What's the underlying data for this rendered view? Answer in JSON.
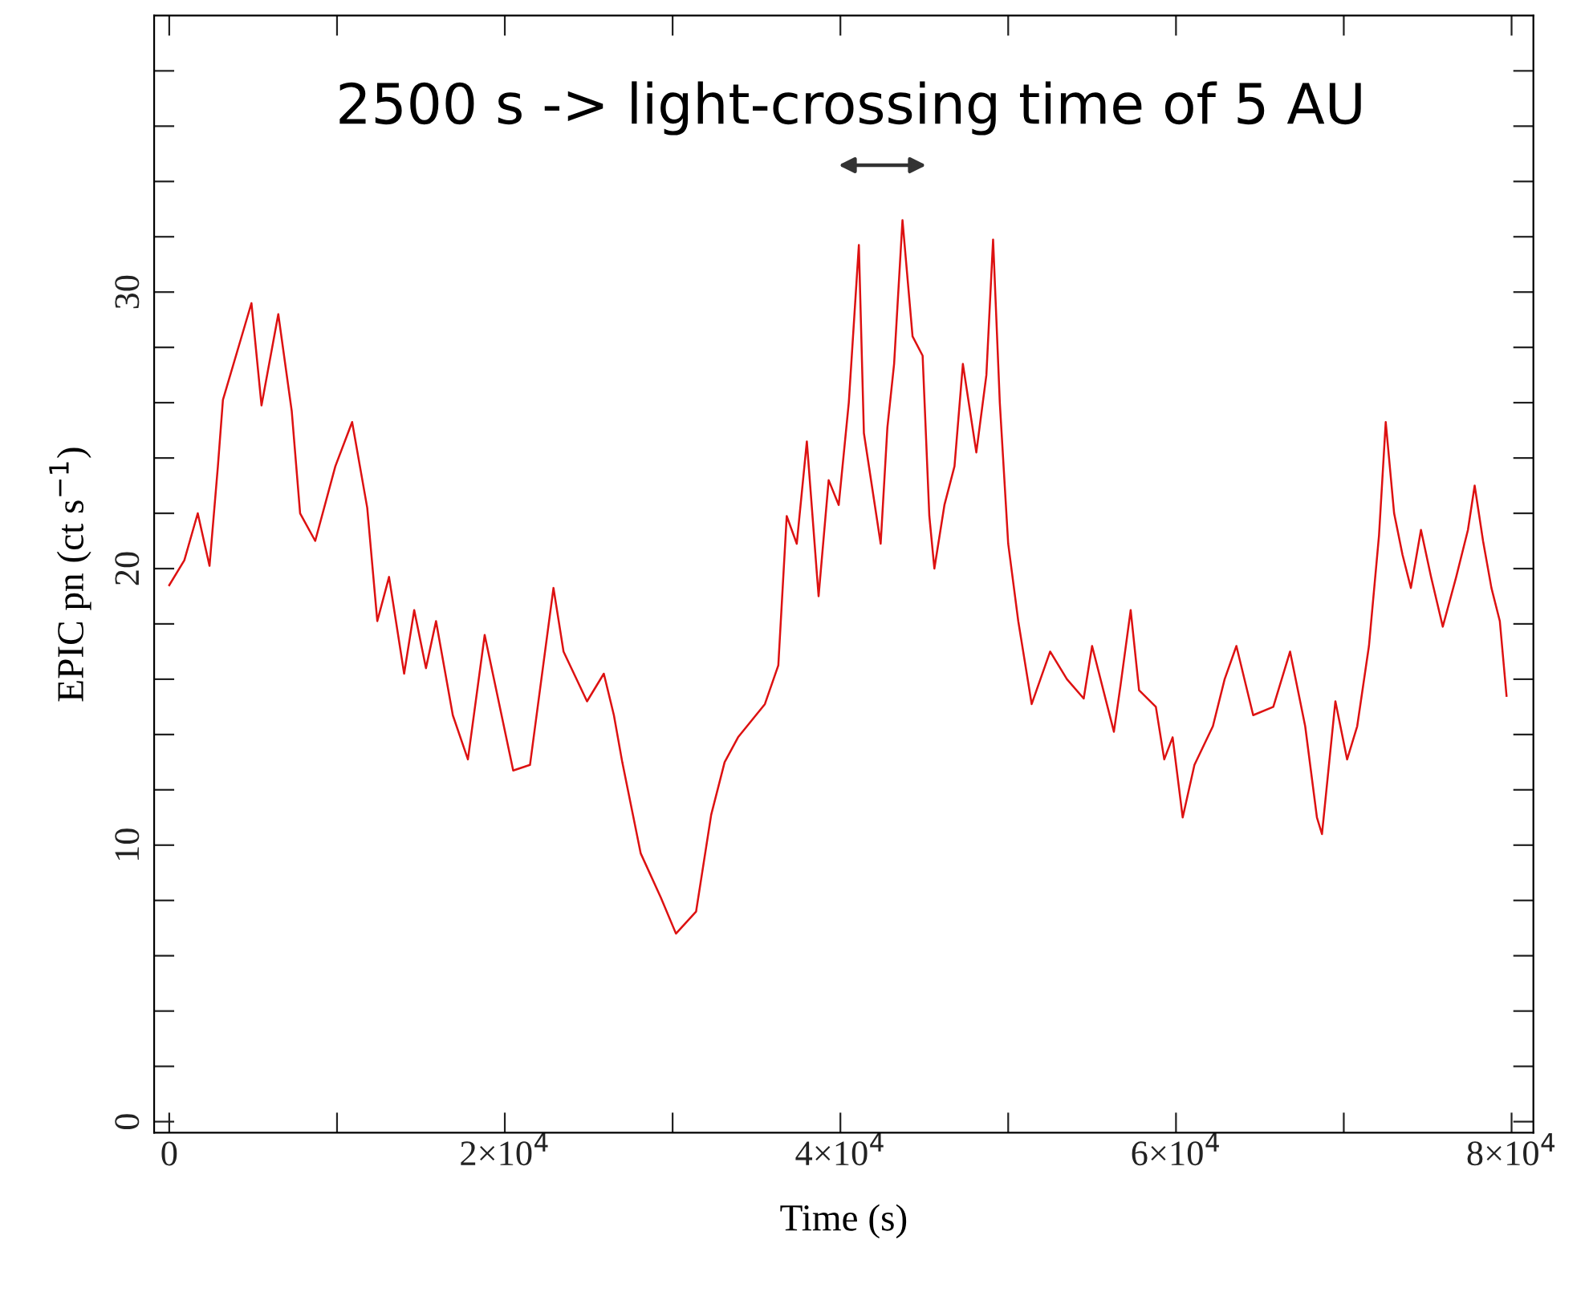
{
  "chart_data": {
    "type": "line",
    "xlabel": "Time (s)",
    "ylabel": "EPIC pn (ct s$^{−1}$)",
    "annotations": [
      "2500 s -> light-crossing time of 5 AU"
    ],
    "xlim": [
      -900,
      81300
    ],
    "ylim": [
      -0.4,
      40
    ],
    "xticks": [
      0,
      {
        "value": 10000,
        "label": null
      },
      {
        "value": 20000,
        "label": "2×10$^{4}$"
      },
      {
        "value": 30000,
        "label": null
      },
      {
        "value": 40000,
        "label": "4×10$^{4}$"
      },
      {
        "value": 50000,
        "label": null
      },
      {
        "value": 60000,
        "label": "6×10$^{4}$"
      },
      {
        "value": 70000,
        "label": null
      },
      {
        "value": 80000,
        "label": "8×10$^{4}$"
      }
    ],
    "yticks": [
      0,
      {
        "value": 2,
        "label": null
      },
      {
        "value": 4,
        "label": null
      },
      {
        "value": 6,
        "label": null
      },
      {
        "value": 8,
        "label": null
      },
      10,
      {
        "value": 12,
        "label": null
      },
      {
        "value": 14,
        "label": null
      },
      {
        "value": 16,
        "label": null
      },
      {
        "value": 18,
        "label": null
      },
      20,
      {
        "value": 22,
        "label": null
      },
      {
        "value": 24,
        "label": null
      },
      {
        "value": 26,
        "label": null
      },
      {
        "value": 28,
        "label": null
      },
      30,
      {
        "value": 32,
        "label": null
      },
      {
        "value": 34,
        "label": null
      },
      {
        "value": 36,
        "label": null
      },
      {
        "value": 38,
        "label": null
      }
    ],
    "grid": false,
    "series": [
      {
        "color": "#dd1111",
        "x": [
          0,
          900,
          1700,
          2400,
          2900,
          3200,
          4900,
          5500,
          6500,
          7300,
          7800,
          8700,
          9900,
          10900,
          11800,
          12400,
          13100,
          14000,
          14600,
          15300,
          15900,
          16900,
          17800,
          18800,
          20500,
          21500,
          22900,
          23500,
          24900,
          25900,
          26500,
          27000,
          28100,
          29300,
          30200,
          31400,
          32300,
          33100,
          33900,
          35500,
          36300,
          36800,
          37400,
          38000,
          38700,
          39300,
          39900,
          40500,
          41100,
          41400,
          42400,
          42800,
          43200,
          43700,
          44300,
          44900,
          45300,
          45600,
          46200,
          46800,
          47300,
          48100,
          48700,
          49100,
          49500,
          50000,
          50600,
          51400,
          52500,
          53500,
          54500,
          55000,
          56300,
          56700,
          57300,
          57800,
          58800,
          59300,
          59800,
          60400,
          61100,
          62200,
          62900,
          63600,
          64600,
          65800,
          66800,
          67700,
          68400,
          68700,
          69500,
          70200,
          70800,
          71500,
          72100,
          72500,
          73000,
          73500,
          74000,
          74600,
          75200,
          75900,
          76700,
          77400,
          77800,
          78300,
          78800,
          79300,
          79700
        ],
        "values": [
          19.4,
          20.3,
          22.0,
          20.1,
          23.7,
          26.1,
          29.6,
          25.9,
          29.2,
          25.7,
          22.0,
          21.0,
          23.7,
          25.3,
          22.2,
          18.1,
          19.7,
          16.2,
          18.5,
          16.4,
          18.1,
          14.7,
          13.1,
          17.6,
          12.7,
          12.9,
          19.3,
          17.0,
          15.2,
          16.2,
          14.7,
          13.0,
          9.7,
          8.1,
          6.8,
          7.6,
          11.1,
          13.0,
          13.9,
          15.1,
          16.5,
          21.9,
          20.9,
          24.6,
          19.0,
          23.2,
          22.3,
          26.0,
          31.7,
          24.9,
          20.9,
          25.1,
          27.4,
          32.6,
          28.4,
          27.7,
          21.9,
          20.0,
          22.3,
          23.7,
          27.4,
          24.2,
          27.0,
          31.9,
          26.0,
          20.9,
          18.1,
          15.1,
          17.0,
          16.0,
          15.3,
          17.2,
          14.1,
          15.8,
          18.5,
          15.6,
          15.0,
          13.1,
          13.9,
          11.0,
          12.9,
          14.3,
          16.0,
          17.2,
          14.7,
          15.0,
          17.0,
          14.3,
          11.0,
          10.4,
          15.2,
          13.1,
          14.3,
          17.2,
          21.2,
          25.3,
          22.0,
          20.5,
          19.3,
          21.4,
          19.7,
          17.9,
          19.7,
          21.4,
          23.0,
          21.0,
          19.3,
          18.1,
          15.4
        ]
      }
    ]
  }
}
